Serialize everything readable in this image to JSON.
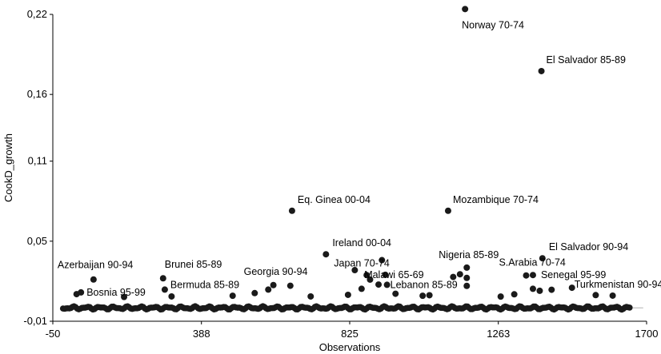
{
  "chart_data": {
    "type": "scatter",
    "title": "",
    "xlabel": "Observations",
    "ylabel": "CookD_growth",
    "xlim": [
      -50,
      1700
    ],
    "ylim": [
      -0.01,
      0.22
    ],
    "x_ticks": [
      -50,
      388,
      825,
      1263,
      1700
    ],
    "y_ticks": [
      -0.01,
      0.05,
      0.11,
      0.16,
      0.22
    ],
    "x_tick_labels": [
      "-50",
      "388",
      "825",
      "1263",
      "1700"
    ],
    "y_tick_labels": [
      "-0,01",
      "0,05",
      "0,11",
      "0,16",
      "0,22"
    ],
    "colors": {
      "marker": "#1a1a1a",
      "axis": "#000000",
      "reference_line": "#b0b0b0"
    },
    "highlighted_points": [
      {
        "x": 1165,
        "y": 0.224,
        "label": "Norway 70-74"
      },
      {
        "x": 1390,
        "y": 0.1775,
        "label": "El Salvador 85-89"
      },
      {
        "x": 655,
        "y": 0.0728,
        "label": "Eq. Ginea 00-04"
      },
      {
        "x": 1115,
        "y": 0.0728,
        "label": "Mozambique 70-74"
      },
      {
        "x": 755,
        "y": 0.0402,
        "label": "Ireland 00-04"
      },
      {
        "x": 920,
        "y": 0.0358,
        "label": "Japan 70-74"
      },
      {
        "x": 1170,
        "y": 0.0302,
        "label": "Nigeria 85-89"
      },
      {
        "x": 1393,
        "y": 0.0372,
        "label": "El Salvador 90-94"
      },
      {
        "x": 1345,
        "y": 0.0243,
        "label": "S.Arabia 70-74"
      },
      {
        "x": 1365,
        "y": 0.0246,
        "label": "Senegal 95-99"
      },
      {
        "x": 875,
        "y": 0.0246,
        "label": "Malawi 65-69"
      },
      {
        "x": 935,
        "y": 0.0173,
        "label": "Lebanon 85-89"
      },
      {
        "x": 70,
        "y": 0.0213,
        "label": "Azerbaijan 90-94"
      },
      {
        "x": 275,
        "y": 0.0222,
        "label": "Brunei 85-89"
      },
      {
        "x": 280,
        "y": 0.0137,
        "label": "Bermuda 85-89"
      },
      {
        "x": 33,
        "y": 0.0116,
        "label": "Bosnia 95-99"
      },
      {
        "x": 600,
        "y": 0.0171,
        "label": "Georgia 90-94"
      },
      {
        "x": 1480,
        "y": 0.0151,
        "label": "Turkmenistan 90-94"
      }
    ],
    "other_points": [
      {
        "x": 840,
        "y": 0.0283
      },
      {
        "x": 885,
        "y": 0.0212
      },
      {
        "x": 910,
        "y": 0.0175
      },
      {
        "x": 930,
        "y": 0.0248
      },
      {
        "x": 1130,
        "y": 0.0232
      },
      {
        "x": 1170,
        "y": 0.0225
      },
      {
        "x": 1170,
        "y": 0.0165
      },
      {
        "x": 1150,
        "y": 0.0252
      },
      {
        "x": 1365,
        "y": 0.0143
      },
      {
        "x": 1385,
        "y": 0.0128
      },
      {
        "x": 1420,
        "y": 0.0136
      },
      {
        "x": 860,
        "y": 0.0143
      },
      {
        "x": 820,
        "y": 0.0098
      },
      {
        "x": 585,
        "y": 0.0137
      },
      {
        "x": 650,
        "y": 0.0166
      },
      {
        "x": 545,
        "y": 0.0111
      },
      {
        "x": 20,
        "y": 0.0103
      },
      {
        "x": 300,
        "y": 0.0086
      },
      {
        "x": 1310,
        "y": 0.0102
      },
      {
        "x": 1550,
        "y": 0.0096
      },
      {
        "x": 1060,
        "y": 0.0095
      },
      {
        "x": 960,
        "y": 0.0106
      },
      {
        "x": 1040,
        "y": 0.0091
      },
      {
        "x": 480,
        "y": 0.0091
      },
      {
        "x": 160,
        "y": 0.0082
      },
      {
        "x": 710,
        "y": 0.0086
      },
      {
        "x": 1270,
        "y": 0.0085
      },
      {
        "x": 1600,
        "y": 0.0092
      }
    ]
  }
}
